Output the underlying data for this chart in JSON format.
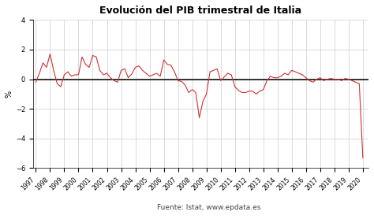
{
  "title": "Evolución del PIB trimestral de Italia",
  "ylabel": "%",
  "ylim": [
    -6,
    4
  ],
  "yticks": [
    -6,
    -4,
    -2,
    0,
    2,
    4
  ],
  "line_color": "#cc3333",
  "zero_line_color": "#111111",
  "background_color": "#ffffff",
  "grid_color": "#cccccc",
  "source_text": "Fuente: Istat, www.epdata.es",
  "x_labels": [
    "1997",
    "1998",
    "1999",
    "2000",
    "2001",
    "2002",
    "2003",
    "2004",
    "2005",
    "2006",
    "2007",
    "2008",
    "2009",
    "2010",
    "2011",
    "2012",
    "2013",
    "2014",
    "2015",
    "2016",
    "2017",
    "2018",
    "2019",
    "2020"
  ],
  "values": [
    -0.2,
    0.4,
    1.1,
    0.8,
    1.7,
    0.6,
    -0.3,
    -0.5,
    0.3,
    0.5,
    0.2,
    0.3,
    0.3,
    1.5,
    1.0,
    0.8,
    1.6,
    1.5,
    0.6,
    0.3,
    0.4,
    0.1,
    -0.1,
    -0.2,
    0.6,
    0.7,
    0.1,
    0.35,
    0.8,
    0.9,
    0.6,
    0.4,
    0.2,
    0.3,
    0.4,
    0.2,
    1.3,
    1.0,
    0.95,
    0.5,
    -0.1,
    -0.15,
    -0.4,
    -0.9,
    -0.7,
    -0.9,
    -2.6,
    -1.5,
    -1.0,
    0.5,
    0.6,
    0.7,
    -0.1,
    0.15,
    0.4,
    0.3,
    -0.5,
    -0.75,
    -0.9,
    -0.9,
    -0.8,
    -0.8,
    -1.0,
    -0.8,
    -0.7,
    -0.1,
    0.2,
    0.1,
    0.1,
    0.2,
    0.4,
    0.3,
    0.6,
    0.5,
    0.4,
    0.3,
    0.1,
    -0.1,
    -0.2,
    0.0,
    0.1,
    -0.1,
    0.0,
    0.05,
    0.0,
    0.0,
    -0.1,
    0.05,
    0.0,
    -0.1,
    -0.2,
    -0.3,
    -5.3
  ]
}
